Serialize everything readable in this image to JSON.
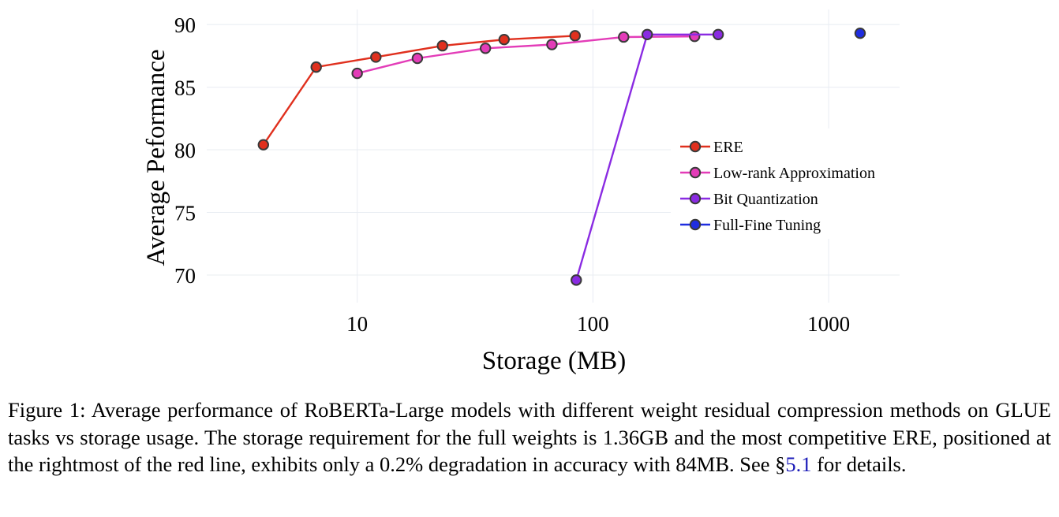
{
  "chart_data": {
    "type": "line",
    "xlabel": "Storage (MB)",
    "ylabel": "Average Peformance",
    "xscale": "log",
    "xlim": [
      2.3,
      2000
    ],
    "ylim": [
      67.8,
      91.2
    ],
    "x_ticks": [
      10,
      100,
      1000
    ],
    "y_ticks": [
      70,
      75,
      80,
      85,
      90
    ],
    "grid": true,
    "legend_position": "right",
    "series": [
      {
        "name": "ERE",
        "color": "#e0301e",
        "x": [
          4,
          6.7,
          12,
          23,
          42,
          84
        ],
        "y": [
          80.4,
          86.6,
          87.4,
          88.3,
          88.8,
          89.1
        ]
      },
      {
        "name": "Low-rank Approximation",
        "color": "#e33cb8",
        "x": [
          10,
          18,
          35,
          67,
          135,
          270
        ],
        "y": [
          86.1,
          87.3,
          88.1,
          88.4,
          89.0,
          89.05
        ]
      },
      {
        "name": "Bit Quantization",
        "color": "#8a2be2",
        "x": [
          85,
          170,
          340
        ],
        "y": [
          69.6,
          89.2,
          89.2
        ]
      },
      {
        "name": "Full-Fine Tuning",
        "color": "#1f2de0",
        "x": [
          1360
        ],
        "y": [
          89.3
        ]
      }
    ]
  },
  "caption": {
    "text_before_link": "Figure 1: Average performance of RoBERTa-Large models with different weight residual compression methods on GLUE tasks vs storage usage. The storage requirement for the full weights is 1.36GB and the most competitive ERE, positioned at the rightmost of the red line, exhibits only a 0.2% degradation in accuracy with 84MB. See §",
    "link_text": "5.1",
    "text_after_link": " for details."
  }
}
